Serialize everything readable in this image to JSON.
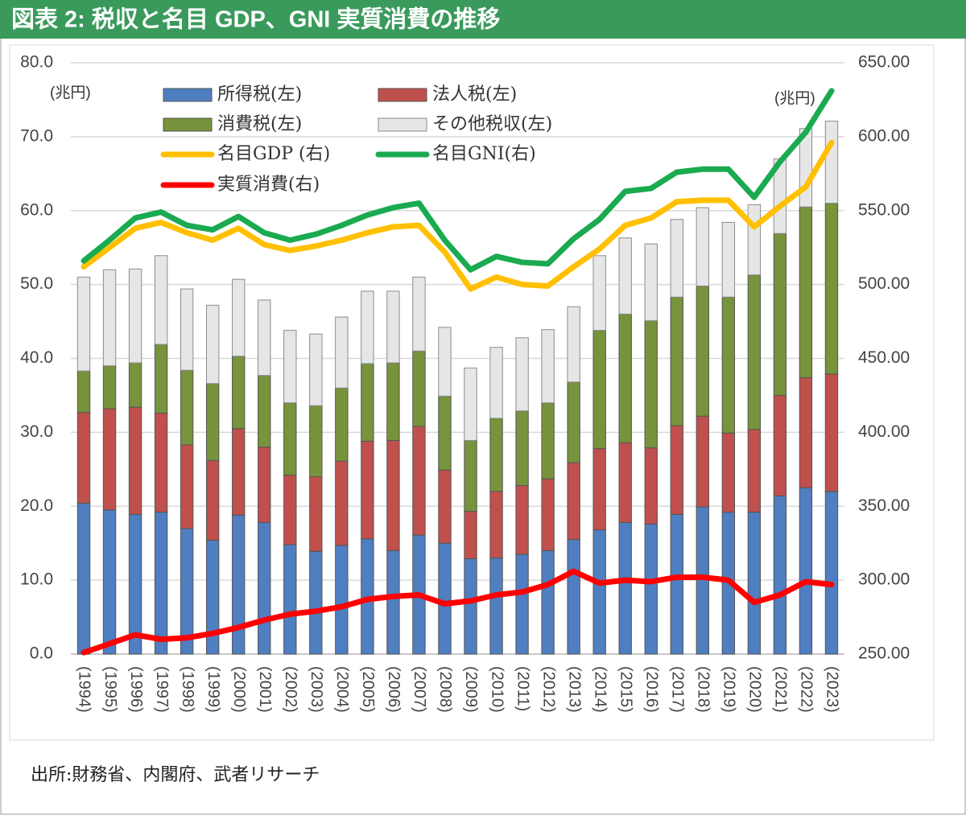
{
  "chart_data": {
    "type": "bar",
    "stacked": true,
    "title": "図表 2: 税収と名目 GDP、GNI 実質消費の推移",
    "ylabel": "(兆円)",
    "y2label": "(兆円)",
    "source": "出所:財務省、内閣府、武者リサーチ",
    "categories": [
      "(1994)",
      "(1995)",
      "(1996)",
      "(1997)",
      "(1998)",
      "(1999)",
      "(2000)",
      "(2001)",
      "(2002)",
      "(2003)",
      "(2004)",
      "(2005)",
      "(2006)",
      "(2007)",
      "(2008)",
      "(2009)",
      "(2010)",
      "(2011)",
      "(2012)",
      "(2013)",
      "(2014)",
      "(2015)",
      "(2016)",
      "(2017)",
      "(2018)",
      "(2019)",
      "(2020)",
      "(2021)",
      "(2022)",
      "(2023)"
    ],
    "ylim": [
      0,
      80
    ],
    "yticks": [
      {
        "value": 0,
        "label": "0.0"
      },
      {
        "value": 10,
        "label": "10.0"
      },
      {
        "value": 20,
        "label": "20.0"
      },
      {
        "value": 30,
        "label": "30.0"
      },
      {
        "value": 40,
        "label": "40.0"
      },
      {
        "value": 50,
        "label": "50.0"
      },
      {
        "value": 60,
        "label": "60.0"
      },
      {
        "value": 70,
        "label": "70.0"
      },
      {
        "value": 80,
        "label": "80.0"
      }
    ],
    "y2lim": [
      250,
      650
    ],
    "y2ticks": [
      {
        "value": 250,
        "label": "250.00"
      },
      {
        "value": 300,
        "label": "300.00"
      },
      {
        "value": 350,
        "label": "350.00"
      },
      {
        "value": 400,
        "label": "400.00"
      },
      {
        "value": 450,
        "label": "450.00"
      },
      {
        "value": 500,
        "label": "500.00"
      },
      {
        "value": 550,
        "label": "550.00"
      },
      {
        "value": 600,
        "label": "600.00"
      },
      {
        "value": 650,
        "label": "650.00"
      }
    ],
    "grid": true,
    "series": [
      {
        "name": "所得税(左)",
        "color": "#4f7ec1",
        "values": [
          20.4,
          19.5,
          18.9,
          19.2,
          17.0,
          15.4,
          18.8,
          17.8,
          14.8,
          13.9,
          14.7,
          15.6,
          14.0,
          16.1,
          15.0,
          12.9,
          13.0,
          13.5,
          14.0,
          15.5,
          16.8,
          17.8,
          17.6,
          18.9,
          19.9,
          19.2,
          19.2,
          21.4,
          22.5,
          22.0
        ]
      },
      {
        "name": "法人税(左)",
        "color": "#c0504d",
        "values": [
          12.3,
          13.7,
          14.5,
          13.4,
          11.3,
          10.8,
          11.7,
          10.2,
          9.4,
          10.1,
          11.4,
          13.2,
          14.9,
          14.7,
          9.9,
          6.4,
          9.0,
          9.3,
          9.7,
          10.4,
          11.0,
          10.8,
          10.3,
          12.0,
          12.3,
          10.7,
          11.2,
          13.6,
          14.9,
          15.9
        ]
      },
      {
        "name": "消費税(左)",
        "color": "#77933c",
        "values": [
          5.6,
          5.8,
          6.0,
          9.3,
          10.1,
          10.4,
          9.8,
          9.7,
          9.8,
          9.6,
          9.9,
          10.5,
          10.5,
          10.2,
          10.0,
          9.6,
          9.9,
          10.1,
          10.3,
          10.9,
          16.0,
          17.4,
          17.2,
          17.4,
          17.6,
          18.4,
          20.9,
          21.9,
          23.1,
          23.1
        ]
      },
      {
        "name": "その他税収(左)",
        "color": "#e6e6e6",
        "values": [
          12.7,
          13.0,
          12.7,
          12.0,
          11.0,
          10.6,
          10.4,
          10.2,
          9.8,
          9.7,
          9.6,
          9.8,
          9.7,
          10.0,
          9.3,
          9.8,
          9.6,
          9.9,
          9.9,
          10.2,
          10.1,
          10.3,
          10.4,
          10.5,
          10.6,
          10.1,
          9.5,
          10.1,
          10.6,
          11.1
        ]
      },
      {
        "name": "名目GDP (右)",
        "color": "#ffc000",
        "axis": "y2",
        "values": [
          512,
          525,
          538,
          542,
          535,
          530,
          538,
          527,
          523,
          526,
          530,
          535,
          539,
          540,
          522,
          497,
          505,
          500,
          499,
          512,
          524,
          540,
          545,
          556,
          557,
          557,
          539,
          553,
          566,
          596
        ]
      },
      {
        "name": "名目GNI(右)",
        "color": "#1aaa50",
        "axis": "y2",
        "values": [
          516,
          530,
          545,
          549,
          540,
          537,
          546,
          535,
          530,
          534,
          540,
          547,
          552,
          555,
          530,
          510,
          519,
          515,
          514,
          531,
          544,
          563,
          565,
          576,
          578,
          578,
          559,
          583,
          603,
          631
        ]
      },
      {
        "name": "実質消費(右)",
        "color": "#ff0000",
        "axis": "y2",
        "values": [
          251,
          257,
          263,
          260,
          261,
          264,
          268,
          273,
          277,
          279,
          282,
          287,
          289,
          290,
          284,
          286,
          290,
          292,
          297,
          306,
          298,
          300,
          299,
          302,
          302,
          300,
          285,
          290,
          299,
          297
        ]
      }
    ]
  }
}
